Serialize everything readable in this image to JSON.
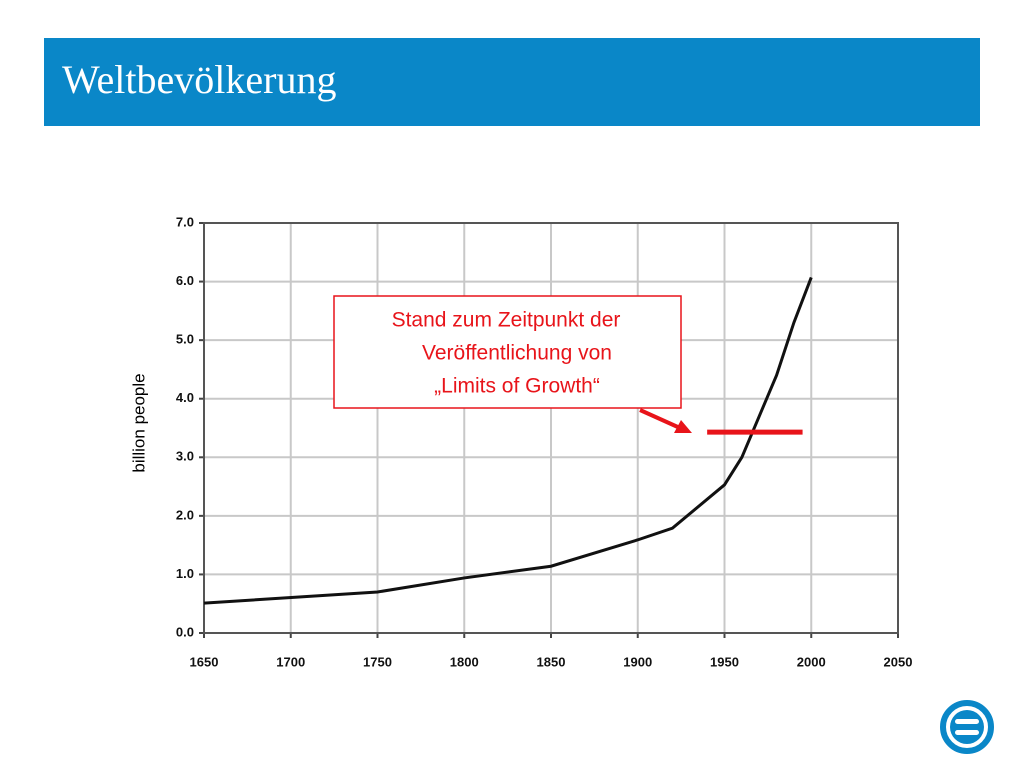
{
  "header": {
    "title": "Weltbevölkerung"
  },
  "chart_data": {
    "type": "line",
    "y_label": "billion people",
    "x": [
      1650,
      1750,
      1800,
      1850,
      1900,
      1920,
      1950,
      1960,
      1970,
      1980,
      1990,
      2000
    ],
    "values": [
      0.51,
      0.7,
      0.94,
      1.14,
      1.59,
      1.79,
      2.53,
      3.0,
      3.7,
      4.4,
      5.3,
      6.07
    ],
    "color": "#111111",
    "xlim": [
      1650,
      2050
    ],
    "xticks": [
      1650,
      1700,
      1750,
      1800,
      1850,
      1900,
      1950,
      2000,
      2050
    ],
    "ylim": [
      0,
      7
    ],
    "yticks": [
      {
        "value": 0,
        "label": "0.0"
      },
      {
        "value": 1,
        "label": "1.0"
      },
      {
        "value": 2,
        "label": "2.0"
      },
      {
        "value": 3,
        "label": "3.0"
      },
      {
        "value": 4,
        "label": "4.0"
      },
      {
        "value": 5,
        "label": "5.0"
      },
      {
        "value": 6,
        "label": "6.0"
      },
      {
        "value": 7,
        "label": "7.0"
      }
    ],
    "grid": true,
    "reference_line": {
      "y": 3.43,
      "x": [
        1940,
        1995
      ],
      "color": "#e8141a"
    },
    "annotation": [
      "Stand zum Zeitpunkt der",
      "Veröffentlichung von",
      "„Limits of Growth“"
    ]
  }
}
